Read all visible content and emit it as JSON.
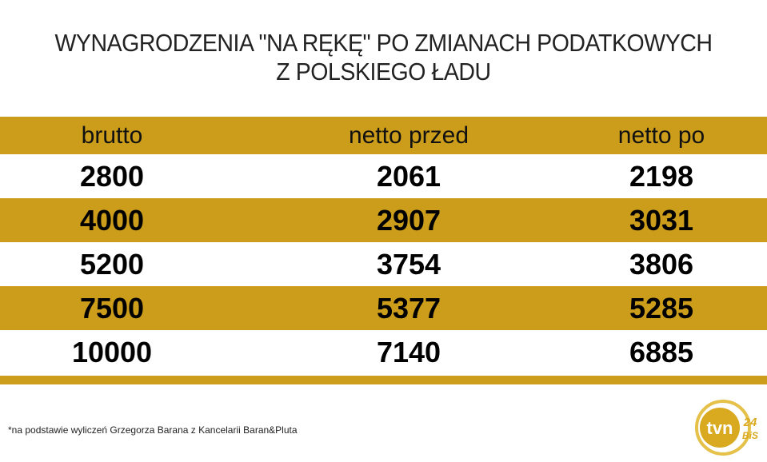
{
  "title_lines": [
    "WYNAGRODZENIA \"NA RĘKĘ\" PO ZMIANACH PODATKOWYCH",
    "Z POLSKIEGO ŁADU"
  ],
  "colors": {
    "accent": "#cb9d1a",
    "text": "#000000"
  },
  "chart_data": {
    "type": "table",
    "columns": [
      "brutto",
      "netto przed",
      "netto po"
    ],
    "rows": [
      [
        "2800",
        "2061",
        "2198"
      ],
      [
        "4000",
        "2907",
        "3031"
      ],
      [
        "5200",
        "3754",
        "3806"
      ],
      [
        "7500",
        "5377",
        "5285"
      ],
      [
        "10000",
        "7140",
        "6885"
      ]
    ]
  },
  "footnote": "*na podstawie wyliczeń Grzegorza Barana z Kancelarii Baran&Pluta",
  "logo": {
    "text": "tvn24 BiS"
  }
}
